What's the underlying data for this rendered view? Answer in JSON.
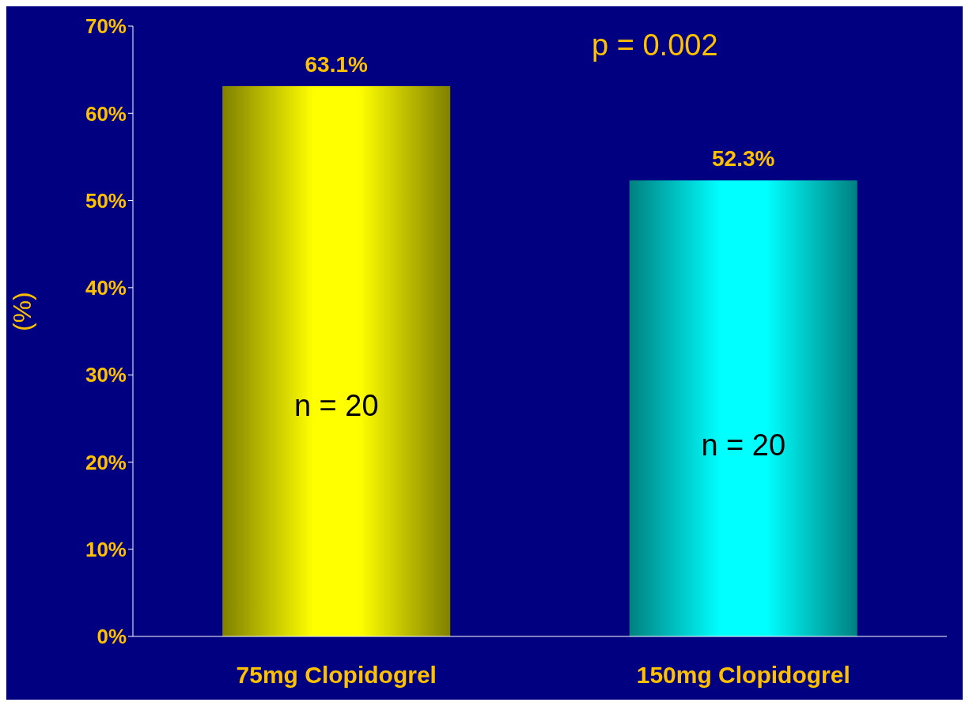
{
  "chart_data": {
    "type": "bar",
    "ylabel": "(%)",
    "categories": [
      "75mg Clopidogrel",
      "150mg Clopidogrel"
    ],
    "values": [
      63.1,
      52.3
    ],
    "colors": [
      "#ffff00",
      "#00ffff"
    ],
    "value_labels": [
      "63.1%",
      "52.3%"
    ],
    "ylim": [
      0,
      70
    ],
    "yticks": [
      {
        "value": 0,
        "label": "0%"
      },
      {
        "value": 10,
        "label": "10%"
      },
      {
        "value": 20,
        "label": "20%"
      },
      {
        "value": 30,
        "label": "30%"
      },
      {
        "value": 40,
        "label": "40%"
      },
      {
        "value": 50,
        "label": "50%"
      },
      {
        "value": 60,
        "label": "60%"
      },
      {
        "value": 70,
        "label": "70%"
      }
    ],
    "annotations": [
      "n = 20",
      "n = 20",
      "p = 0.002"
    ],
    "grid": false,
    "legend": false
  }
}
